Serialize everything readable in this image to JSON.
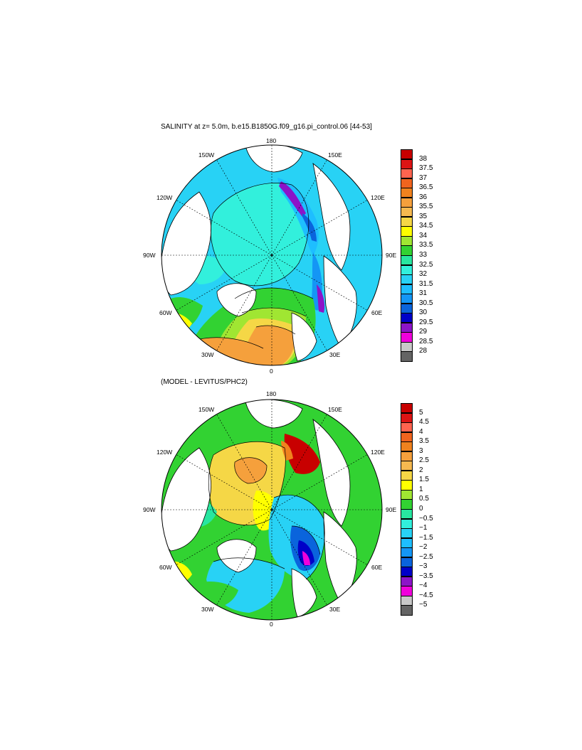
{
  "panel1": {
    "title": "SALINITY at z=   5.0m, b.e15.B1850G.f09_g16.pi_control.06 [44-53]",
    "lon_labels": {
      "top": "180",
      "bottom": "0",
      "left": "90W",
      "right": "90E",
      "ul1": "150W",
      "ul2": "120W",
      "ur1": "150E",
      "ur2": "120E",
      "ll1": "60W",
      "ll2": "30W",
      "lr1": "60E",
      "lr2": "30E"
    },
    "colorbar": {
      "labels": [
        "38",
        "37.5",
        "37",
        "36.5",
        "36",
        "35.5",
        "35",
        "34.5",
        "34",
        "33.5",
        "33",
        "32.5",
        "32",
        "31.5",
        "31",
        "30.5",
        "30",
        "29.5",
        "29",
        "28.5",
        "28"
      ],
      "colors": [
        "#c80000",
        "#dc1414",
        "#ff3c1e",
        "#f0641e",
        "#f0821e",
        "#f5a03c",
        "#f5b950",
        "#f5d746",
        "#ffff00",
        "#a0e632",
        "#32d232",
        "#28e6a0",
        "#32f0dc",
        "#28d2f5",
        "#1ebeff",
        "#1496f5",
        "#0a64dc",
        "#0000c8",
        "#8c14c8",
        "#f000dc",
        "#c8c8c8",
        "#646464"
      ]
    }
  },
  "panel2": {
    "title": "(MODEL - LEVITUS/PHC2)",
    "lon_labels": {
      "top": "180",
      "bottom": "0",
      "left": "90W",
      "right": "90E",
      "ul1": "150W",
      "ul2": "120W",
      "ur1": "150E",
      "ur2": "120E",
      "ll1": "60W",
      "ll2": "30W",
      "lr1": "60E",
      "lr2": "30E"
    },
    "colorbar": {
      "labels": [
        "5",
        "4.5",
        "4",
        "3.5",
        "3",
        "2.5",
        "2",
        "1.5",
        "1",
        "0.5",
        "0",
        "−0.5",
        "−1",
        "−1.5",
        "−2",
        "−2.5",
        "−3",
        "−3.5",
        "−4",
        "−4.5",
        "−5"
      ],
      "colors": [
        "#c80000",
        "#dc1414",
        "#ff3c1e",
        "#f0641e",
        "#f0821e",
        "#f5a03c",
        "#f5b950",
        "#f5d746",
        "#ffff00",
        "#a0e632",
        "#32d232",
        "#28e6a0",
        "#32f0dc",
        "#28d2f5",
        "#1ebeff",
        "#1496f5",
        "#0a64dc",
        "#0000c8",
        "#8c14c8",
        "#f000dc",
        "#c8c8c8",
        "#646464"
      ]
    }
  }
}
